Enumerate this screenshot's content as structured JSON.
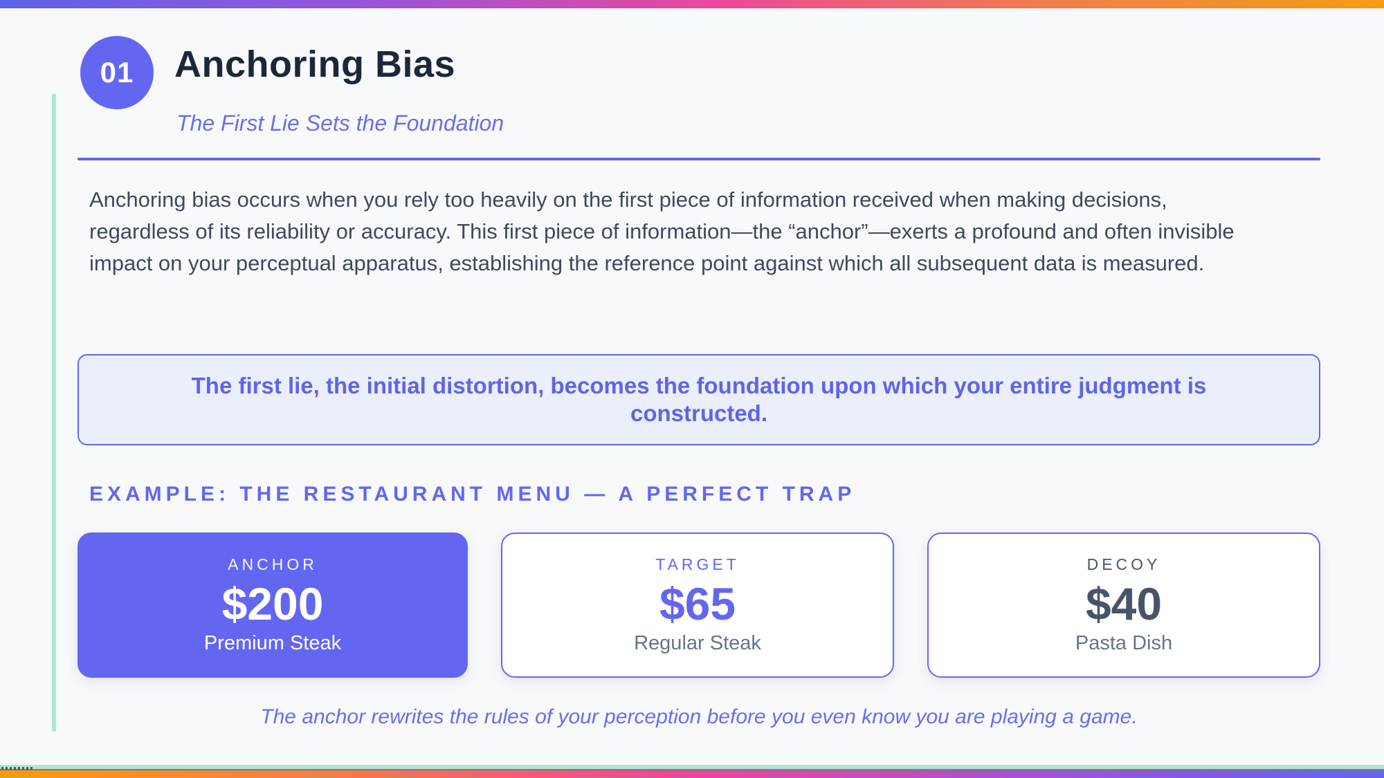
{
  "header": {
    "number": "01",
    "title": "Anchoring Bias",
    "subtitle": "The First Lie Sets the Foundation"
  },
  "body": {
    "paragraph": "Anchoring bias occurs when you rely too heavily on the first piece of information received when making decisions, regardless of its reliability or accuracy. This first piece of information—the “anchor”—exerts a profound and often invisible impact on your perceptual apparatus, establishing the reference point against which all subsequent data is measured.",
    "quote": "The first lie, the initial distortion, becomes the foundation upon which your entire judgment is constructed."
  },
  "example": {
    "heading": "EXAMPLE: THE RESTAURANT MENU — A PERFECT TRAP",
    "caption": "The anchor rewrites the rules of your perception before you even know you are playing a game."
  },
  "cards": [
    {
      "label": "ANCHOR",
      "price": "$200",
      "item": "Premium Steak",
      "variant": "anchor-filled"
    },
    {
      "label": "TARGET",
      "price": "$65",
      "item": "Regular Steak",
      "variant": "target-outline"
    },
    {
      "label": "DECOY",
      "price": "$40",
      "item": "Pasta Dish",
      "variant": "decoy-outline"
    }
  ],
  "colors": {
    "accent_purple": "#6366F1",
    "title_navy": "#1C2738",
    "body_text": "#3E4A5B",
    "muted_gray": "#64748B",
    "decoy_slate": "#475569",
    "teal_accent": "#AEE5DA",
    "quote_background": "#EBEEFB",
    "page_background": "#F8F9FB",
    "gradient_top": [
      "#5B63E8",
      "#9D53D7",
      "#EC4899",
      "#F07E4A",
      "#F59C13"
    ],
    "gradient_bottom": [
      "#F59C13",
      "#F07E4A",
      "#EC4899",
      "#9D53D7",
      "#6166EC"
    ]
  }
}
